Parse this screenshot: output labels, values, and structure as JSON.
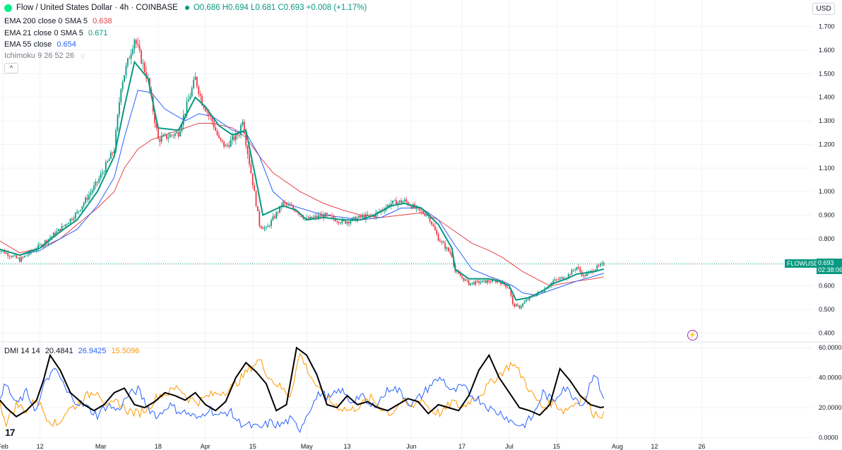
{
  "header": {
    "title": "Flow / United States Dollar · 4h · COINBASE",
    "ohlc": "O0.686 H0.694 L0.681 C0.693 +0.008 (+1.17%)",
    "currency": "USD",
    "collapse_glyph": "^"
  },
  "indicators": [
    {
      "label": "EMA 200 close 0 SMA 5",
      "value": "0.638",
      "color": "#e5464b"
    },
    {
      "label": "EMA 21 close 0 SMA 5",
      "value": "0.671",
      "color": "#089981"
    },
    {
      "label": "EMA 55 close",
      "value": "0.654",
      "color": "#2962ff"
    },
    {
      "label": "Ichimoku 9 26 52 26",
      "value": "",
      "color": "#787b86"
    }
  ],
  "dmi": {
    "label": "DMI 14 14",
    "adx": "20.4841",
    "plus_di": "26.9425",
    "minus_di": "15.5096",
    "colors": {
      "adx": "#000000",
      "plus_di": "#2962ff",
      "minus_di": "#ff9800"
    }
  },
  "price_tag": {
    "symbol": "FLOWUSD",
    "price": "0.693",
    "countdown": "02:38:06"
  },
  "colors": {
    "up": "#089981",
    "down": "#f23645",
    "accent": "#089981"
  },
  "icons": {
    "visibility": "eye-slash-icon",
    "alert": "lightning-icon",
    "logo": "tradingview-logo"
  },
  "logo_text": "17",
  "chart_data": [
    {
      "type": "candlestick",
      "title": "Flow / United States Dollar · 4h · COINBASE",
      "y_ticks": [
        "0.400",
        "0.500",
        "0.600",
        "0.700",
        "0.800",
        "0.900",
        "1.000",
        "1.100",
        "1.200",
        "1.300",
        "1.400",
        "1.500",
        "1.600",
        "1.700"
      ],
      "ylim": [
        0.38,
        1.72
      ],
      "x_tick_labels": [
        "Feb",
        "12",
        "Mar",
        "18",
        "Apr",
        "15",
        "May",
        "13",
        "Jun",
        "17",
        "Jul",
        "15",
        "Aug",
        "12",
        "26"
      ],
      "x_tick_days": [
        0,
        11,
        29,
        46,
        60,
        74,
        90,
        102,
        121,
        136,
        150,
        164,
        182,
        193,
        207
      ],
      "last_close": 0.693,
      "grid": true,
      "series": [
        {
          "name": "Price",
          "x": [
            -2,
            5,
            11,
            17,
            22,
            28,
            33,
            35,
            39,
            43,
            46,
            52,
            57,
            59,
            62,
            64,
            66,
            70,
            71,
            72,
            75,
            76,
            78,
            83,
            87,
            90,
            95,
            101,
            106,
            110,
            115,
            119,
            122,
            123,
            126,
            129,
            133,
            134,
            138,
            144,
            147,
            150,
            151,
            153,
            156,
            160,
            163,
            167,
            170,
            172,
            175,
            178
          ],
          "y": [
            0.76,
            0.71,
            0.77,
            0.84,
            0.91,
            1.04,
            1.18,
            1.45,
            1.65,
            1.47,
            1.22,
            1.25,
            1.48,
            1.38,
            1.3,
            1.22,
            1.19,
            1.25,
            1.31,
            1.21,
            0.95,
            0.86,
            0.84,
            0.95,
            0.92,
            0.88,
            0.9,
            0.87,
            0.89,
            0.9,
            0.95,
            0.96,
            0.93,
            0.92,
            0.9,
            0.8,
            0.73,
            0.66,
            0.61,
            0.62,
            0.62,
            0.59,
            0.52,
            0.51,
            0.55,
            0.58,
            0.62,
            0.64,
            0.68,
            0.64,
            0.67,
            0.693
          ]
        },
        {
          "name": "EMA 21",
          "x": [
            -2,
            5,
            11,
            17,
            22,
            28,
            33,
            36,
            39,
            43,
            46,
            52,
            57,
            60,
            64,
            68,
            72,
            75,
            77,
            83,
            87,
            90,
            95,
            101,
            106,
            110,
            115,
            119,
            124,
            129,
            133,
            134,
            138,
            144,
            147,
            150,
            152,
            156,
            160,
            163,
            167,
            170,
            175,
            178
          ],
          "y": [
            0.76,
            0.73,
            0.76,
            0.83,
            0.88,
            1.0,
            1.15,
            1.36,
            1.55,
            1.48,
            1.27,
            1.26,
            1.4,
            1.36,
            1.28,
            1.24,
            1.26,
            1.05,
            0.9,
            0.94,
            0.92,
            0.88,
            0.89,
            0.88,
            0.88,
            0.9,
            0.94,
            0.95,
            0.93,
            0.86,
            0.76,
            0.67,
            0.63,
            0.63,
            0.62,
            0.6,
            0.54,
            0.55,
            0.58,
            0.61,
            0.63,
            0.65,
            0.66,
            0.671
          ]
        },
        {
          "name": "EMA 55",
          "x": [
            -2,
            5,
            11,
            17,
            22,
            28,
            33,
            36,
            40,
            44,
            48,
            54,
            58,
            62,
            68,
            72,
            76,
            80,
            84,
            88,
            95,
            101,
            106,
            112,
            118,
            124,
            129,
            134,
            139,
            144,
            148,
            151,
            154,
            158,
            162,
            166,
            170,
            175,
            178
          ],
          "y": [
            0.76,
            0.73,
            0.75,
            0.8,
            0.84,
            0.94,
            1.06,
            1.23,
            1.43,
            1.42,
            1.35,
            1.3,
            1.33,
            1.32,
            1.26,
            1.25,
            1.15,
            1.0,
            0.95,
            0.93,
            0.9,
            0.89,
            0.88,
            0.89,
            0.93,
            0.93,
            0.88,
            0.77,
            0.67,
            0.64,
            0.62,
            0.6,
            0.57,
            0.56,
            0.58,
            0.6,
            0.62,
            0.64,
            0.654
          ]
        },
        {
          "name": "EMA 200",
          "x": [
            -2,
            5,
            11,
            17,
            22,
            28,
            33,
            36,
            40,
            44,
            48,
            54,
            58,
            62,
            68,
            72,
            76,
            80,
            88,
            95,
            101,
            106,
            112,
            118,
            124,
            129,
            134,
            139,
            144,
            148,
            151,
            154,
            158,
            162,
            166,
            170,
            175,
            178
          ],
          "y": [
            0.8,
            0.74,
            0.76,
            0.8,
            0.86,
            0.93,
            1.0,
            1.1,
            1.18,
            1.22,
            1.24,
            1.27,
            1.29,
            1.29,
            1.27,
            1.23,
            1.15,
            1.08,
            1.0,
            0.95,
            0.92,
            0.9,
            0.89,
            0.9,
            0.91,
            0.88,
            0.83,
            0.78,
            0.75,
            0.72,
            0.69,
            0.66,
            0.63,
            0.6,
            0.61,
            0.62,
            0.63,
            0.638
          ]
        }
      ]
    },
    {
      "type": "line",
      "title": "DMI 14 14",
      "y_ticks": [
        "0.0000",
        "20.0000",
        "40.0000",
        "60.0000"
      ],
      "ylim": [
        -5,
        62
      ],
      "series": [
        {
          "name": "ADX",
          "x": [
            -2,
            1,
            4,
            7,
            10,
            12,
            14,
            17,
            20,
            24,
            27,
            30,
            33,
            36,
            39,
            42,
            45,
            48,
            51,
            54,
            57,
            60,
            63,
            66,
            69,
            72,
            75,
            78,
            81,
            84,
            87,
            90,
            93,
            96,
            99,
            102,
            105,
            108,
            111,
            114,
            117,
            120,
            123,
            126,
            129,
            132,
            135,
            138,
            141,
            144,
            147,
            150,
            153,
            156,
            159,
            162,
            165,
            168,
            171,
            174,
            177,
            178
          ],
          "y": [
            28,
            20,
            14,
            18,
            25,
            38,
            55,
            45,
            30,
            22,
            18,
            22,
            30,
            33,
            22,
            20,
            24,
            30,
            28,
            25,
            30,
            22,
            18,
            24,
            40,
            50,
            44,
            36,
            18,
            22,
            60,
            55,
            42,
            22,
            20,
            28,
            22,
            24,
            20,
            18,
            22,
            26,
            24,
            16,
            22,
            20,
            18,
            28,
            45,
            55,
            40,
            30,
            20,
            18,
            15,
            22,
            46,
            38,
            28,
            22,
            20,
            20.48
          ]
        },
        {
          "name": "+DI",
          "x": [
            -2,
            1,
            4,
            7,
            10,
            13,
            16,
            19,
            22,
            25,
            28,
            31,
            34,
            37,
            40,
            43,
            46,
            49,
            52,
            55,
            58,
            61,
            64,
            67,
            70,
            73,
            76,
            79,
            82,
            85,
            88,
            91,
            94,
            97,
            100,
            103,
            106,
            109,
            112,
            115,
            118,
            121,
            124,
            127,
            130,
            133,
            136,
            139,
            142,
            145,
            148,
            151,
            154,
            157,
            160,
            163,
            166,
            169,
            172,
            175,
            178
          ],
          "y": [
            25,
            35,
            22,
            30,
            18,
            40,
            45,
            30,
            24,
            20,
            15,
            22,
            18,
            28,
            32,
            20,
            14,
            22,
            18,
            16,
            12,
            20,
            14,
            18,
            10,
            8,
            6,
            10,
            8,
            12,
            6,
            20,
            30,
            26,
            32,
            24,
            28,
            20,
            26,
            34,
            30,
            22,
            28,
            36,
            40,
            30,
            34,
            28,
            24,
            18,
            16,
            10,
            8,
            14,
            30,
            24,
            34,
            28,
            22,
            44,
            26.94
          ]
        },
        {
          "name": "-DI",
          "x": [
            -2,
            1,
            4,
            7,
            10,
            13,
            16,
            19,
            22,
            25,
            28,
            31,
            34,
            37,
            40,
            43,
            46,
            49,
            52,
            55,
            58,
            61,
            64,
            67,
            70,
            73,
            76,
            79,
            82,
            85,
            88,
            91,
            94,
            97,
            100,
            103,
            106,
            109,
            112,
            115,
            118,
            121,
            124,
            127,
            130,
            133,
            136,
            139,
            142,
            145,
            148,
            151,
            154,
            157,
            160,
            163,
            166,
            169,
            172,
            175,
            178
          ],
          "y": [
            30,
            10,
            22,
            18,
            26,
            14,
            8,
            18,
            22,
            28,
            32,
            20,
            24,
            18,
            16,
            20,
            28,
            30,
            34,
            26,
            24,
            28,
            30,
            32,
            38,
            46,
            52,
            40,
            34,
            28,
            56,
            42,
            30,
            24,
            20,
            18,
            22,
            26,
            20,
            16,
            24,
            20,
            26,
            18,
            16,
            24,
            20,
            26,
            30,
            38,
            44,
            50,
            40,
            28,
            20,
            24,
            18,
            22,
            28,
            16,
            15.51
          ]
        }
      ]
    }
  ]
}
